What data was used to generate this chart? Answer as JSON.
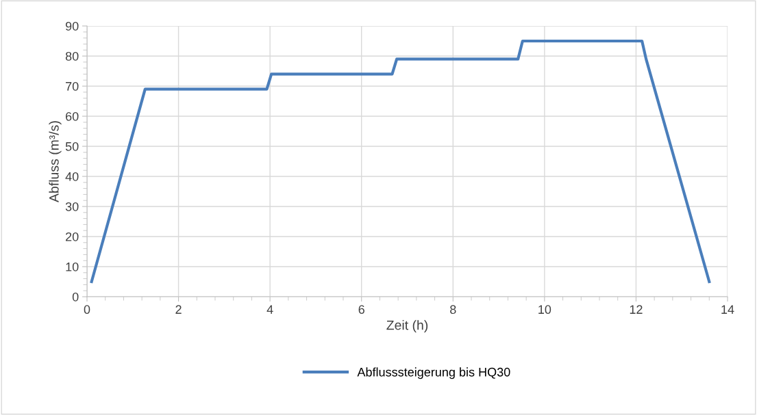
{
  "chart_data": {
    "type": "line",
    "xlabel": "Zeit (h)",
    "ylabel": "Abfluss (m³/s)",
    "x": [
      0.1,
      1.27,
      3.93,
      4.03,
      6.67,
      6.77,
      9.42,
      9.52,
      12.13,
      12.22,
      13.6
    ],
    "series": [
      {
        "name": "Abflusssteigerung bis HQ30",
        "color": "#4a7ebb",
        "values": [
          5,
          69,
          69,
          74,
          74,
          79,
          79,
          85,
          85,
          79,
          5
        ]
      }
    ],
    "xlim": [
      0,
      14
    ],
    "xticks": [
      0,
      2,
      4,
      6,
      8,
      10,
      12,
      14
    ],
    "ylim": [
      0,
      90
    ],
    "yticks": [
      0,
      10,
      20,
      30,
      40,
      50,
      60,
      70,
      80,
      90
    ],
    "grid": true,
    "legend": "bottom",
    "marker": "none",
    "line_style": "solid"
  }
}
